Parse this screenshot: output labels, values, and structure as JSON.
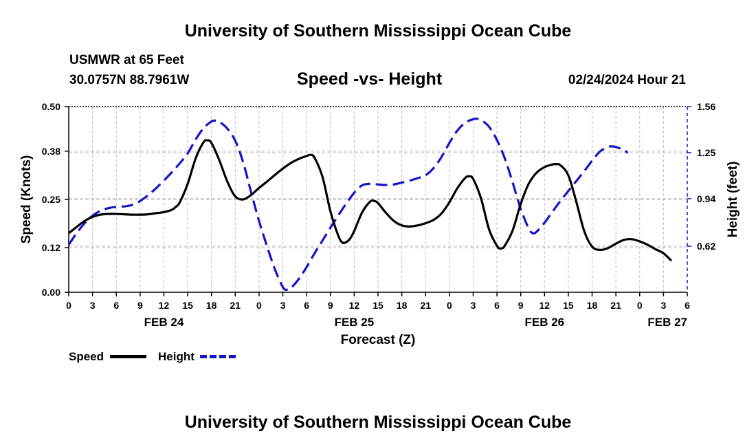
{
  "header": {
    "title": "University of Southern Mississippi Ocean Cube",
    "station_name": "USMWR at 65 Feet",
    "station_coords": "30.0757N  88.7961W",
    "subtitle": "Speed -vs- Height",
    "date": "02/24/2024 Hour 21"
  },
  "footer": {
    "title": "University of Southern Mississippi Ocean Cube"
  },
  "legend": {
    "speed_label": "Speed",
    "height_label": "Height"
  },
  "colors": {
    "speed": "#000000",
    "height": "#1414c8",
    "grid": "#bdbdbd"
  },
  "chart_data": {
    "type": "line",
    "title": "Speed -vs- Height",
    "xlabel": "Forecast (Z)",
    "ylabel_left": "Speed (Knots)",
    "ylabel_right": "Height (feet)",
    "xlim": [
      0,
      78
    ],
    "ylim_left": [
      0,
      0.5
    ],
    "ylim_right": [
      0.31,
      1.56
    ],
    "x_unit": "hours from 00Z Feb 24",
    "x_ticks": [
      0,
      3,
      6,
      9,
      12,
      15,
      18,
      21,
      24,
      27,
      30,
      33,
      36,
      39,
      42,
      45,
      48,
      51,
      54,
      57,
      60,
      63,
      66,
      69,
      72,
      75,
      78
    ],
    "x_tick_labels": [
      "0",
      "3",
      "6",
      "9",
      "12",
      "15",
      "18",
      "21",
      "0",
      "3",
      "6",
      "9",
      "12",
      "15",
      "18",
      "21",
      "0",
      "3",
      "6",
      "9",
      "12",
      "15",
      "18",
      "21",
      "0",
      "3",
      "6"
    ],
    "y_left_ticks": [
      0.0,
      0.12,
      0.25,
      0.38,
      0.5
    ],
    "y_left_tick_labels": [
      "0.00",
      "0.12",
      "0.25",
      "0.38",
      "0.50"
    ],
    "y_right_ticks": [
      0.62,
      0.94,
      1.25,
      1.56
    ],
    "y_right_tick_labels": [
      "0.62",
      "0.94",
      "1.25",
      "1.56"
    ],
    "day_labels": [
      {
        "x": 12,
        "label": "FEB 24"
      },
      {
        "x": 36,
        "label": "FEB 25"
      },
      {
        "x": 60,
        "label": "FEB 26"
      },
      {
        "x": 78,
        "label": "FEB 27"
      }
    ],
    "grid": true,
    "legend_position": "bottom-left",
    "series": [
      {
        "name": "Speed",
        "axis": "left",
        "style": "solid",
        "points": [
          [
            0,
            0.159
          ],
          [
            1,
            0.176
          ],
          [
            2,
            0.192
          ],
          [
            3,
            0.203
          ],
          [
            4,
            0.209
          ],
          [
            5,
            0.211
          ],
          [
            6,
            0.211
          ],
          [
            7,
            0.21
          ],
          [
            8,
            0.209
          ],
          [
            9,
            0.209
          ],
          [
            10,
            0.21
          ],
          [
            11,
            0.213
          ],
          [
            12,
            0.216
          ],
          [
            13,
            0.222
          ],
          [
            13.5,
            0.23
          ],
          [
            14,
            0.242
          ],
          [
            15,
            0.292
          ],
          [
            16,
            0.36
          ],
          [
            17,
            0.404
          ],
          [
            17.5,
            0.409
          ],
          [
            18,
            0.402
          ],
          [
            19,
            0.355
          ],
          [
            20,
            0.298
          ],
          [
            21,
            0.258
          ],
          [
            22,
            0.25
          ],
          [
            23,
            0.262
          ],
          [
            24,
            0.281
          ],
          [
            25,
            0.298
          ],
          [
            26,
            0.316
          ],
          [
            27,
            0.333
          ],
          [
            28,
            0.348
          ],
          [
            29,
            0.359
          ],
          [
            30,
            0.367
          ],
          [
            30.5,
            0.37
          ],
          [
            31,
            0.362
          ],
          [
            32,
            0.311
          ],
          [
            33,
            0.218
          ],
          [
            34,
            0.152
          ],
          [
            34.5,
            0.134
          ],
          [
            35,
            0.135
          ],
          [
            35.5,
            0.145
          ],
          [
            36,
            0.165
          ],
          [
            37,
            0.215
          ],
          [
            38,
            0.244
          ],
          [
            38.5,
            0.246
          ],
          [
            39,
            0.24
          ],
          [
            40,
            0.214
          ],
          [
            41,
            0.192
          ],
          [
            42,
            0.18
          ],
          [
            43,
            0.177
          ],
          [
            44,
            0.18
          ],
          [
            45,
            0.186
          ],
          [
            46,
            0.195
          ],
          [
            47,
            0.212
          ],
          [
            48,
            0.242
          ],
          [
            49,
            0.28
          ],
          [
            50,
            0.308
          ],
          [
            50.5,
            0.312
          ],
          [
            51,
            0.305
          ],
          [
            52,
            0.252
          ],
          [
            53,
            0.17
          ],
          [
            54,
            0.125
          ],
          [
            54.5,
            0.118
          ],
          [
            55,
            0.126
          ],
          [
            56,
            0.168
          ],
          [
            57,
            0.238
          ],
          [
            58,
            0.292
          ],
          [
            59,
            0.322
          ],
          [
            60,
            0.337
          ],
          [
            61,
            0.344
          ],
          [
            61.5,
            0.345
          ],
          [
            62,
            0.342
          ],
          [
            63,
            0.315
          ],
          [
            64,
            0.244
          ],
          [
            65,
            0.165
          ],
          [
            66,
            0.123
          ],
          [
            67,
            0.114
          ],
          [
            68,
            0.119
          ],
          [
            69,
            0.131
          ],
          [
            70,
            0.141
          ],
          [
            71,
            0.143
          ],
          [
            72,
            0.137
          ],
          [
            73,
            0.128
          ],
          [
            74,
            0.116
          ],
          [
            75,
            0.105
          ],
          [
            76,
            0.085
          ]
        ]
      },
      {
        "name": "Height",
        "axis": "right",
        "style": "dashed",
        "points": [
          [
            0,
            0.63
          ],
          [
            1,
            0.708
          ],
          [
            2,
            0.775
          ],
          [
            3,
            0.825
          ],
          [
            4,
            0.858
          ],
          [
            5,
            0.876
          ],
          [
            6,
            0.885
          ],
          [
            7,
            0.888
          ],
          [
            8,
            0.898
          ],
          [
            9,
            0.924
          ],
          [
            10,
            0.963
          ],
          [
            11,
            1.01
          ],
          [
            12,
            1.062
          ],
          [
            13,
            1.118
          ],
          [
            14,
            1.178
          ],
          [
            15,
            1.245
          ],
          [
            16,
            1.338
          ],
          [
            17,
            1.415
          ],
          [
            18,
            1.46
          ],
          [
            18.5,
            1.466
          ],
          [
            19,
            1.458
          ],
          [
            20,
            1.412
          ],
          [
            21,
            1.33
          ],
          [
            22,
            1.185
          ],
          [
            23,
            0.983
          ],
          [
            24,
            0.79
          ],
          [
            25,
            0.62
          ],
          [
            26,
            0.465
          ],
          [
            27,
            0.345
          ],
          [
            27.5,
            0.327
          ],
          [
            28,
            0.338
          ],
          [
            29,
            0.398
          ],
          [
            30,
            0.48
          ],
          [
            31,
            0.572
          ],
          [
            32,
            0.658
          ],
          [
            33,
            0.745
          ],
          [
            34,
            0.828
          ],
          [
            35,
            0.908
          ],
          [
            36,
            0.98
          ],
          [
            37,
            1.03
          ],
          [
            38,
            1.04
          ],
          [
            39,
            1.036
          ],
          [
            40,
            1.032
          ],
          [
            41,
            1.036
          ],
          [
            42,
            1.048
          ],
          [
            43,
            1.062
          ],
          [
            44,
            1.078
          ],
          [
            45,
            1.098
          ],
          [
            46,
            1.145
          ],
          [
            47,
            1.22
          ],
          [
            48,
            1.315
          ],
          [
            49,
            1.398
          ],
          [
            50,
            1.452
          ],
          [
            51,
            1.475
          ],
          [
            51.5,
            1.478
          ],
          [
            52,
            1.47
          ],
          [
            53,
            1.425
          ],
          [
            54,
            1.335
          ],
          [
            55,
            1.21
          ],
          [
            56,
            1.045
          ],
          [
            57,
            0.872
          ],
          [
            58,
            0.74
          ],
          [
            58.5,
            0.708
          ],
          [
            59,
            0.718
          ],
          [
            60,
            0.778
          ],
          [
            61,
            0.852
          ],
          [
            62,
            0.925
          ],
          [
            63,
            0.992
          ],
          [
            64,
            1.058
          ],
          [
            65,
            1.125
          ],
          [
            66,
            1.195
          ],
          [
            67,
            1.258
          ],
          [
            68,
            1.288
          ],
          [
            68.5,
            1.292
          ],
          [
            69,
            1.288
          ],
          [
            70,
            1.268
          ],
          [
            70.5,
            1.248
          ]
        ]
      }
    ]
  }
}
